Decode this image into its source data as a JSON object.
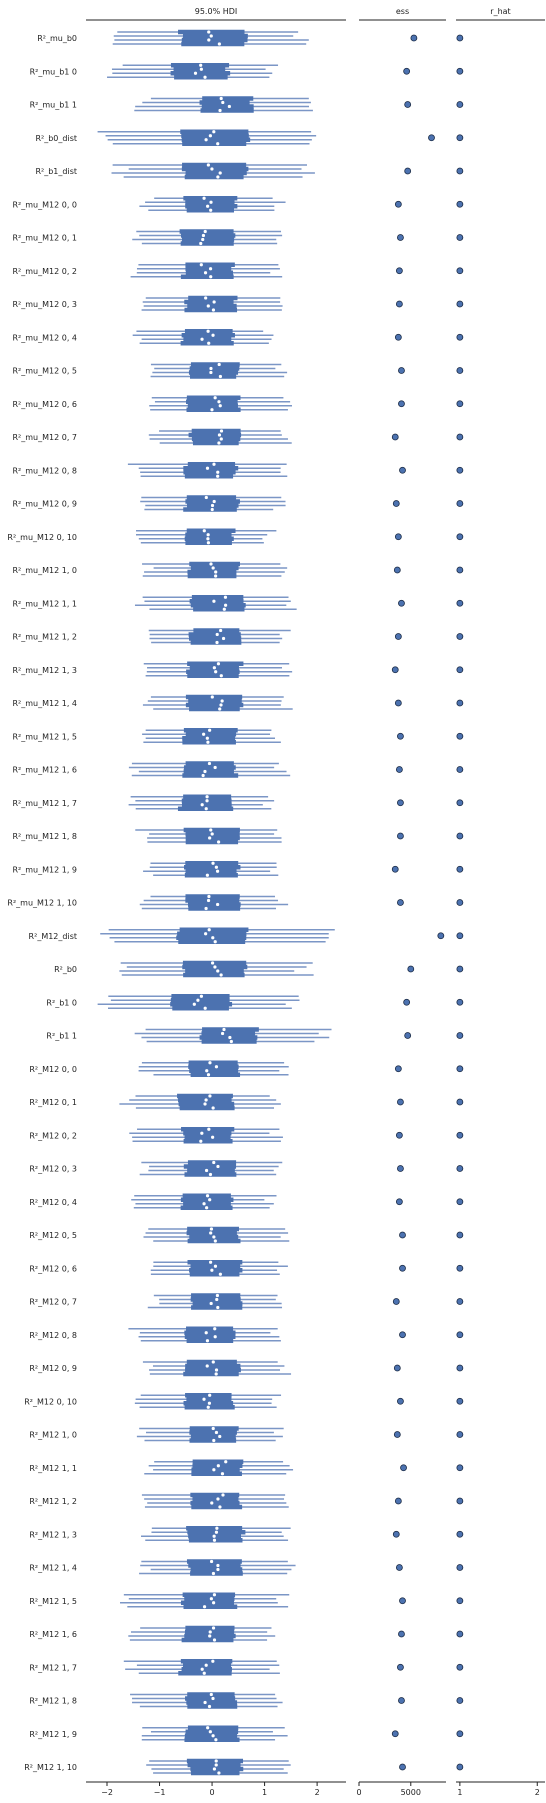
{
  "chart_data": {
    "type": "forest",
    "panels": [
      {
        "title": "95.0% HDI",
        "xticks": [
          -2,
          -1,
          0,
          1,
          2
        ],
        "xlim": [
          -2.4,
          2.55
        ]
      },
      {
        "title": "ess",
        "xticks": [
          0,
          5000
        ],
        "xlim": [
          0,
          8400
        ]
      },
      {
        "title": "r_hat",
        "xticks": [
          1,
          2
        ],
        "xlim": [
          0.95,
          2.1
        ]
      }
    ],
    "chains": 4,
    "colors": {
      "interval": "#4c72b0",
      "interval_light": "#7b96c6",
      "median": "#ffffff",
      "point": "#4c72b0",
      "point_edge": "#1b2b45",
      "axis": "#222222"
    },
    "rows": [
      {
        "label": "R²_mu_b0",
        "center": 0.05,
        "hdi": [
          -1.8,
          1.75
        ],
        "iqr": [
          -0.6,
          0.65
        ],
        "ess": 5300,
        "r_hat": 1.0
      },
      {
        "label": "R²_mu_b1 0",
        "center": -0.25,
        "hdi": [
          -1.85,
          1.2
        ],
        "iqr": [
          -0.75,
          0.3
        ],
        "ess": 4600,
        "r_hat": 1.0
      },
      {
        "label": "R²_mu_b1 1",
        "center": 0.25,
        "hdi": [
          -1.3,
          1.9
        ],
        "iqr": [
          -0.2,
          0.75
        ],
        "ess": 4700,
        "r_hat": 1.0
      },
      {
        "label": "R²_b0_dist",
        "center": 0.0,
        "hdi": [
          -2.0,
          1.8
        ],
        "iqr": [
          -0.6,
          0.7
        ],
        "ess": 7000,
        "r_hat": 1.0
      },
      {
        "label": "R²_b1_dist",
        "center": 0.05,
        "hdi": [
          -1.8,
          1.8
        ],
        "iqr": [
          -0.55,
          0.65
        ],
        "ess": 4700,
        "r_hat": 1.0
      },
      {
        "label": "R²_mu_M12 0, 0",
        "center": -0.05,
        "hdi": [
          -1.25,
          1.3
        ],
        "iqr": [
          -0.5,
          0.45
        ],
        "ess": 3800,
        "r_hat": 1.0
      },
      {
        "label": "R²_mu_M12 0, 1",
        "center": -0.1,
        "hdi": [
          -1.45,
          1.2
        ],
        "iqr": [
          -0.6,
          0.4
        ],
        "ess": 4000,
        "r_hat": 1.0
      },
      {
        "label": "R²_mu_M12 0, 2",
        "center": -0.1,
        "hdi": [
          -1.4,
          1.2
        ],
        "iqr": [
          -0.55,
          0.4
        ],
        "ess": 3900,
        "r_hat": 1.0
      },
      {
        "label": "R²_mu_M12 0, 3",
        "center": 0.0,
        "hdi": [
          -1.2,
          1.25
        ],
        "iqr": [
          -0.5,
          0.45
        ],
        "ess": 3900,
        "r_hat": 1.0
      },
      {
        "label": "R²_mu_M12 0, 4",
        "center": -0.1,
        "hdi": [
          -1.4,
          1.1
        ],
        "iqr": [
          -0.55,
          0.4
        ],
        "ess": 3800,
        "r_hat": 1.0
      },
      {
        "label": "R²_mu_M12 0, 5",
        "center": 0.05,
        "hdi": [
          -1.2,
          1.3
        ],
        "iqr": [
          -0.45,
          0.5
        ],
        "ess": 4100,
        "r_hat": 1.0
      },
      {
        "label": "R²_mu_M12 0, 6",
        "center": 0.05,
        "hdi": [
          -1.1,
          1.4
        ],
        "iqr": [
          -0.45,
          0.5
        ],
        "ess": 4100,
        "r_hat": 1.0
      },
      {
        "label": "R²_mu_M12 0, 7",
        "center": 0.1,
        "hdi": [
          -1.15,
          1.4
        ],
        "iqr": [
          -0.4,
          0.55
        ],
        "ess": 3500,
        "r_hat": 1.0
      },
      {
        "label": "R²_mu_M12 0, 8",
        "center": 0.0,
        "hdi": [
          -1.45,
          1.3
        ],
        "iqr": [
          -0.5,
          0.45
        ],
        "ess": 4200,
        "r_hat": 1.0
      },
      {
        "label": "R²_mu_M12 0, 9",
        "center": 0.0,
        "hdi": [
          -1.3,
          1.3
        ],
        "iqr": [
          -0.5,
          0.5
        ],
        "ess": 3600,
        "r_hat": 1.0
      },
      {
        "label": "R²_mu_M12 0, 10",
        "center": -0.05,
        "hdi": [
          -1.4,
          1.1
        ],
        "iqr": [
          -0.5,
          0.4
        ],
        "ess": 3800,
        "r_hat": 1.0
      },
      {
        "label": "R²_mu_M12 1, 0",
        "center": 0.05,
        "hdi": [
          -1.2,
          1.3
        ],
        "iqr": [
          -0.45,
          0.5
        ],
        "ess": 3700,
        "r_hat": 1.0
      },
      {
        "label": "R²_mu_M12 1, 1",
        "center": 0.15,
        "hdi": [
          -1.3,
          1.5
        ],
        "iqr": [
          -0.4,
          0.6
        ],
        "ess": 4100,
        "r_hat": 1.0
      },
      {
        "label": "R²_mu_M12 1, 2",
        "center": 0.1,
        "hdi": [
          -1.15,
          1.35
        ],
        "iqr": [
          -0.4,
          0.55
        ],
        "ess": 3800,
        "r_hat": 1.0
      },
      {
        "label": "R²_mu_M12 1, 3",
        "center": 0.1,
        "hdi": [
          -1.15,
          1.45
        ],
        "iqr": [
          -0.45,
          0.55
        ],
        "ess": 3500,
        "r_hat": 1.0
      },
      {
        "label": "R²_mu_M12 1, 4",
        "center": 0.1,
        "hdi": [
          -1.2,
          1.45
        ],
        "iqr": [
          -0.45,
          0.55
        ],
        "ess": 3800,
        "r_hat": 1.0
      },
      {
        "label": "R²_mu_M12 1, 5",
        "center": -0.05,
        "hdi": [
          -1.3,
          1.25
        ],
        "iqr": [
          -0.55,
          0.45
        ],
        "ess": 4000,
        "r_hat": 1.0
      },
      {
        "label": "R²_mu_M12 1, 6",
        "center": -0.05,
        "hdi": [
          -1.5,
          1.35
        ],
        "iqr": [
          -0.55,
          0.45
        ],
        "ess": 3900,
        "r_hat": 1.0
      },
      {
        "label": "R²_mu_M12 1, 7",
        "center": -0.1,
        "hdi": [
          -1.6,
          1.1
        ],
        "iqr": [
          -0.6,
          0.4
        ],
        "ess": 4000,
        "r_hat": 1.0
      },
      {
        "label": "R²_mu_M12 1, 8",
        "center": 0.0,
        "hdi": [
          -1.35,
          1.25
        ],
        "iqr": [
          -0.5,
          0.5
        ],
        "ess": 4000,
        "r_hat": 1.0
      },
      {
        "label": "R²_mu_M12 1, 9",
        "center": 0.0,
        "hdi": [
          -1.2,
          1.25
        ],
        "iqr": [
          -0.5,
          0.5
        ],
        "ess": 3500,
        "r_hat": 1.0
      },
      {
        "label": "R²_mu_M12 1, 10",
        "center": 0.0,
        "hdi": [
          -1.3,
          1.3
        ],
        "iqr": [
          -0.5,
          0.5
        ],
        "ess": 4000,
        "r_hat": 1.0
      },
      {
        "label": "R²_M12_dist",
        "center": 0.0,
        "hdi": [
          -2.0,
          2.2
        ],
        "iqr": [
          -0.65,
          0.65
        ],
        "ess": 7900,
        "r_hat": 1.0
      },
      {
        "label": "R²_b0",
        "center": 0.05,
        "hdi": [
          -1.75,
          1.75
        ],
        "iqr": [
          -0.55,
          0.65
        ],
        "ess": 5000,
        "r_hat": 1.0
      },
      {
        "label": "R²_b1 0",
        "center": -0.25,
        "hdi": [
          -2.0,
          1.6
        ],
        "iqr": [
          -0.8,
          0.35
        ],
        "ess": 4600,
        "r_hat": 1.0
      },
      {
        "label": "R²_b1 1",
        "center": 0.3,
        "hdi": [
          -1.3,
          2.1
        ],
        "iqr": [
          -0.2,
          0.85
        ],
        "ess": 4700,
        "r_hat": 1.0
      },
      {
        "label": "R²_M12 0, 0",
        "center": 0.0,
        "hdi": [
          -1.25,
          1.35
        ],
        "iqr": [
          -0.45,
          0.5
        ],
        "ess": 3800,
        "r_hat": 1.0
      },
      {
        "label": "R²_M12 0, 1",
        "center": -0.1,
        "hdi": [
          -1.6,
          1.2
        ],
        "iqr": [
          -0.65,
          0.4
        ],
        "ess": 4000,
        "r_hat": 1.0
      },
      {
        "label": "R²_M12 0, 2",
        "center": -0.1,
        "hdi": [
          -1.5,
          1.2
        ],
        "iqr": [
          -0.55,
          0.4
        ],
        "ess": 3900,
        "r_hat": 1.0
      },
      {
        "label": "R²_M12 0, 3",
        "center": 0.0,
        "hdi": [
          -1.3,
          1.25
        ],
        "iqr": [
          -0.5,
          0.45
        ],
        "ess": 4000,
        "r_hat": 1.0
      },
      {
        "label": "R²_M12 0, 4",
        "center": -0.1,
        "hdi": [
          -1.45,
          1.15
        ],
        "iqr": [
          -0.55,
          0.4
        ],
        "ess": 3900,
        "r_hat": 1.0
      },
      {
        "label": "R²_M12 0, 5",
        "center": 0.05,
        "hdi": [
          -1.25,
          1.4
        ],
        "iqr": [
          -0.45,
          0.5
        ],
        "ess": 4200,
        "r_hat": 1.0
      },
      {
        "label": "R²_M12 0, 6",
        "center": 0.05,
        "hdi": [
          -1.2,
          1.35
        ],
        "iqr": [
          -0.45,
          0.55
        ],
        "ess": 4200,
        "r_hat": 1.0
      },
      {
        "label": "R²_M12 0, 7",
        "center": 0.1,
        "hdi": [
          -1.15,
          1.35
        ],
        "iqr": [
          -0.4,
          0.55
        ],
        "ess": 3600,
        "r_hat": 1.0
      },
      {
        "label": "R²_M12 0, 8",
        "center": 0.0,
        "hdi": [
          -1.45,
          1.25
        ],
        "iqr": [
          -0.5,
          0.45
        ],
        "ess": 4200,
        "r_hat": 1.0
      },
      {
        "label": "R²_M12 0, 9",
        "center": 0.0,
        "hdi": [
          -1.25,
          1.4
        ],
        "iqr": [
          -0.5,
          0.5
        ],
        "ess": 3700,
        "r_hat": 1.0
      },
      {
        "label": "R²_M12 0, 10",
        "center": -0.05,
        "hdi": [
          -1.4,
          1.2
        ],
        "iqr": [
          -0.5,
          0.4
        ],
        "ess": 4000,
        "r_hat": 1.0
      },
      {
        "label": "R²_M12 1, 0",
        "center": 0.05,
        "hdi": [
          -1.3,
          1.3
        ],
        "iqr": [
          -0.45,
          0.5
        ],
        "ess": 3700,
        "r_hat": 1.0
      },
      {
        "label": "R²_M12 1, 1",
        "center": 0.15,
        "hdi": [
          -1.2,
          1.45
        ],
        "iqr": [
          -0.4,
          0.55
        ],
        "ess": 4300,
        "r_hat": 1.0
      },
      {
        "label": "R²_M12 1, 2",
        "center": 0.1,
        "hdi": [
          -1.25,
          1.5
        ],
        "iqr": [
          -0.4,
          0.55
        ],
        "ess": 3800,
        "r_hat": 1.0
      },
      {
        "label": "R²_M12 1, 3",
        "center": 0.1,
        "hdi": [
          -1.2,
          1.45
        ],
        "iqr": [
          -0.45,
          0.6
        ],
        "ess": 3600,
        "r_hat": 1.0
      },
      {
        "label": "R²_M12 1, 4",
        "center": 0.1,
        "hdi": [
          -1.25,
          1.45
        ],
        "iqr": [
          -0.45,
          0.55
        ],
        "ess": 3900,
        "r_hat": 1.0
      },
      {
        "label": "R²_M12 1, 5",
        "center": -0.05,
        "hdi": [
          -1.7,
          1.35
        ],
        "iqr": [
          -0.55,
          0.45
        ],
        "ess": 4200,
        "r_hat": 1.0
      },
      {
        "label": "R²_M12 1, 6",
        "center": -0.05,
        "hdi": [
          -1.5,
          1.2
        ],
        "iqr": [
          -0.55,
          0.4
        ],
        "ess": 4100,
        "r_hat": 1.0
      },
      {
        "label": "R²_M12 1, 7",
        "center": -0.1,
        "hdi": [
          -1.55,
          1.15
        ],
        "iqr": [
          -0.6,
          0.4
        ],
        "ess": 4000,
        "r_hat": 1.0
      },
      {
        "label": "R²_M12 1, 8",
        "center": -0.05,
        "hdi": [
          -1.5,
          1.25
        ],
        "iqr": [
          -0.5,
          0.45
        ],
        "ess": 4100,
        "r_hat": 1.0
      },
      {
        "label": "R²_M12 1, 9",
        "center": 0.0,
        "hdi": [
          -1.3,
          1.3
        ],
        "iqr": [
          -0.5,
          0.5
        ],
        "ess": 3500,
        "r_hat": 1.0
      },
      {
        "label": "R²_M12 1, 10",
        "center": 0.1,
        "hdi": [
          -1.25,
          1.4
        ],
        "iqr": [
          -0.45,
          0.55
        ],
        "ess": 4200,
        "r_hat": 1.0
      }
    ]
  }
}
